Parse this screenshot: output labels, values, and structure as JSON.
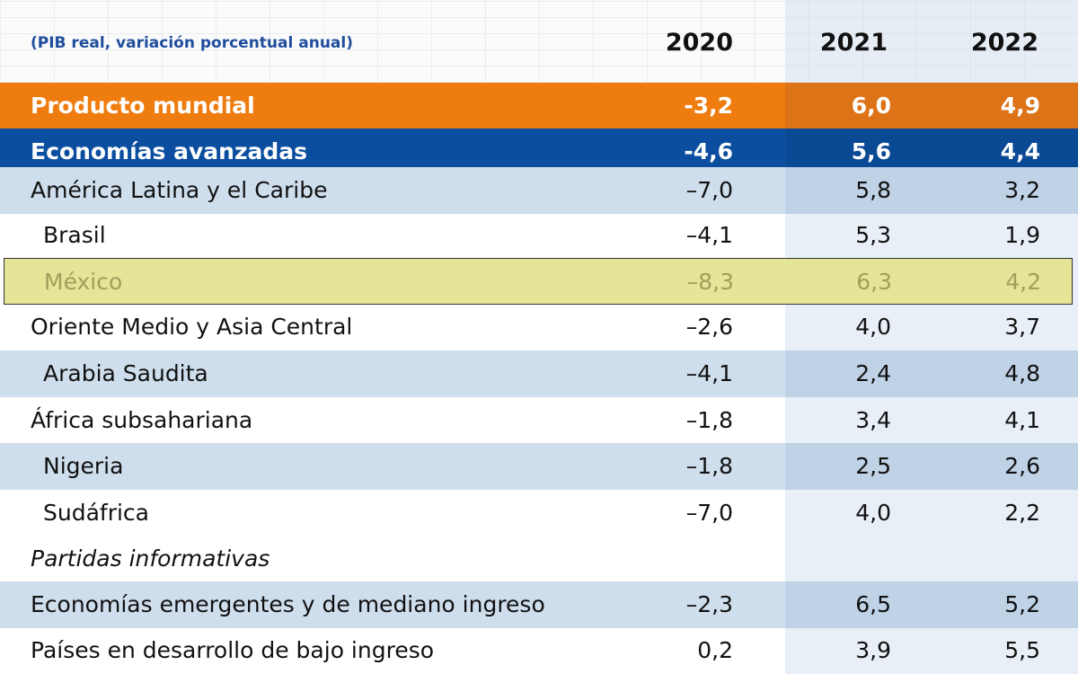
{
  "chart_data": {
    "type": "table",
    "unit_note": "(PIB real, variación porcentual anual)",
    "columns": [
      "2020",
      "2021",
      "2022"
    ],
    "rows": [
      {
        "label": "Producto mundial",
        "values": [
          "-3,2",
          "6,0",
          "4,9"
        ]
      },
      {
        "label": "Economías avanzadas",
        "values": [
          "-4,6",
          "5,6",
          "4,4"
        ]
      },
      {
        "label": "América Latina y el Caribe",
        "values": [
          "–7,0",
          "5,8",
          "3,2"
        ]
      },
      {
        "label": "Brasil",
        "values": [
          "–4,1",
          "5,3",
          "1,9"
        ]
      },
      {
        "label": "México",
        "values": [
          "–8,3",
          "6,3",
          "4,2"
        ]
      },
      {
        "label": "Oriente Medio y Asia Central",
        "values": [
          "–2,6",
          "4,0",
          "3,7"
        ]
      },
      {
        "label": "Arabia Saudita",
        "values": [
          "–4,1",
          "2,4",
          "4,8"
        ]
      },
      {
        "label": "África subsahariana",
        "values": [
          "–1,8",
          "3,4",
          "4,1"
        ]
      },
      {
        "label": "Nigeria",
        "values": [
          "–1,8",
          "2,5",
          "2,6"
        ]
      },
      {
        "label": "Sudáfrica",
        "values": [
          "–7,0",
          "4,0",
          "2,2"
        ]
      },
      {
        "label": "Partidas informativas",
        "values": [
          "",
          "",
          ""
        ]
      },
      {
        "label": "Economías emergentes y de mediano ingreso",
        "values": [
          "–2,3",
          "6,5",
          "5,2"
        ]
      },
      {
        "label": "Países en desarrollo de bajo ingreso",
        "values": [
          "0,2",
          "3,9",
          "5,5"
        ]
      }
    ]
  },
  "colors": {
    "orange": "#ef7c0f",
    "blue": "#0b4e9f",
    "light_blue": "#cfdeec",
    "highlight": "#e5e598",
    "unit_text": "#1f4e9c"
  }
}
